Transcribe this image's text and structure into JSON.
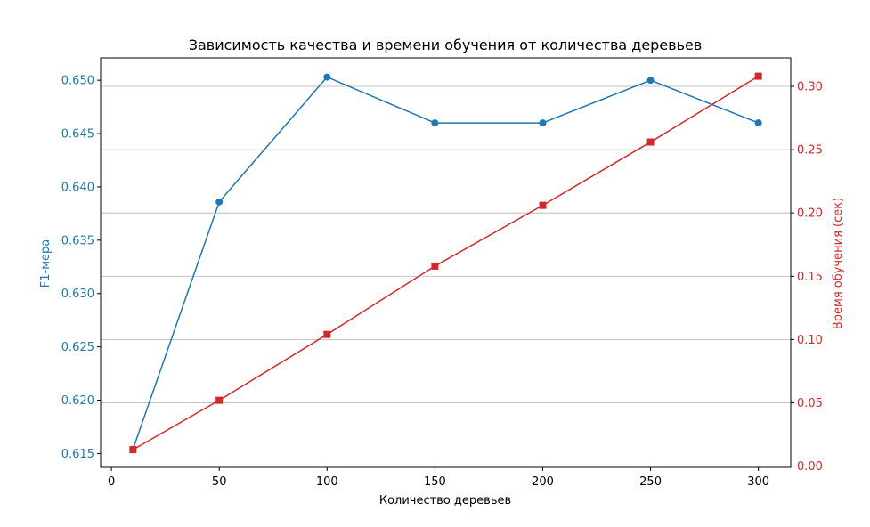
{
  "chart_data": {
    "type": "line",
    "title": "Зависимость качества и времени обучения от количества деревьев",
    "xlabel": "Количество деревьев",
    "ylabel_left": "F1-мера",
    "ylabel_right": "Время обучения (сек)",
    "x": [
      10,
      50,
      100,
      150,
      200,
      250,
      300
    ],
    "xlim": [
      -5,
      315
    ],
    "ylim_left": [
      0.6137,
      0.6521
    ],
    "ylim_right": [
      -0.001,
      0.3225
    ],
    "xticks": [
      0,
      50,
      100,
      150,
      200,
      250,
      300
    ],
    "xtick_labels": [
      "0",
      "50",
      "100",
      "150",
      "200",
      "250",
      "300"
    ],
    "yticks_left": [
      0.615,
      0.62,
      0.625,
      0.63,
      0.635,
      0.64,
      0.645,
      0.65
    ],
    "ytick_labels_left": [
      "0.615",
      "0.620",
      "0.625",
      "0.630",
      "0.635",
      "0.640",
      "0.645",
      "0.650"
    ],
    "yticks_right": [
      0.0,
      0.05,
      0.1,
      0.15,
      0.2,
      0.25,
      0.3
    ],
    "ytick_labels_right": [
      "0.00",
      "0.05",
      "0.10",
      "0.15",
      "0.20",
      "0.25",
      "0.30"
    ],
    "grid": "horizontal (right axis)",
    "series": [
      {
        "axis": "left",
        "marker": "circle",
        "color": "#1f77b4",
        "values": [
          0.6154,
          0.6386,
          0.6503,
          0.646,
          0.646,
          0.65,
          0.646
        ]
      },
      {
        "axis": "right",
        "marker": "square",
        "color": "#d62728",
        "values": [
          0.013,
          0.052,
          0.104,
          0.158,
          0.206,
          0.256,
          0.308
        ]
      }
    ]
  }
}
